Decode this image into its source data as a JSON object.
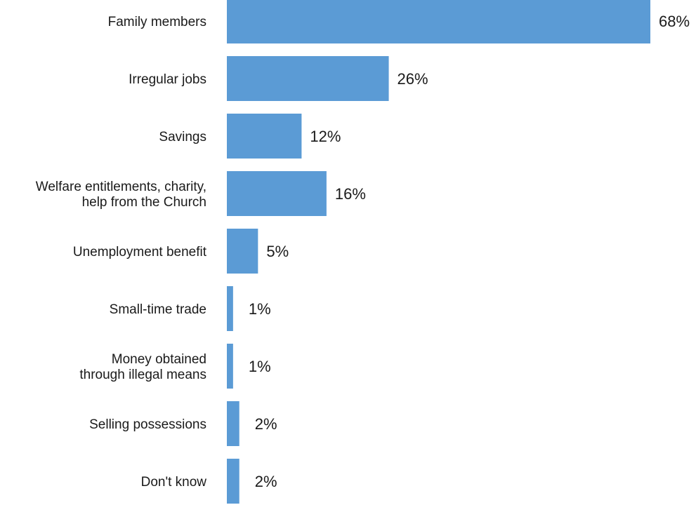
{
  "chart_data": {
    "type": "bar",
    "orientation": "horizontal",
    "categories": [
      [
        "Family members"
      ],
      [
        "Irregular jobs"
      ],
      [
        "Savings"
      ],
      [
        "Welfare entitlements, charity,",
        "help from the Church"
      ],
      [
        "Unemployment benefit"
      ],
      [
        "Small-time trade"
      ],
      [
        "Money obtained",
        "through illegal means"
      ],
      [
        "Selling possessions"
      ],
      [
        "Don't know"
      ]
    ],
    "values": [
      68,
      26,
      12,
      16,
      5,
      1,
      1,
      2,
      2
    ],
    "value_labels": [
      "68%",
      "26%",
      "12%",
      "16%",
      "5%",
      "1%",
      "1%",
      "2%",
      "2%"
    ],
    "unit": "%",
    "xlim": [
      0,
      68
    ],
    "grid": false,
    "legend": "none",
    "bar_color": "#5b9bd5"
  }
}
